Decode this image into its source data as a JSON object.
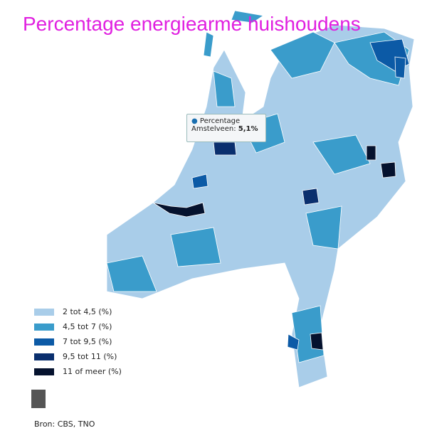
{
  "title": "Percentage energiearme huishoudens",
  "tooltip": {
    "series": "Percentage",
    "label": "Amstelveen:",
    "value": "5,1%"
  },
  "legend": [
    {
      "label": "2 tot 4,5 (%)",
      "color": "#a9cde9"
    },
    {
      "label": "4,5 tot 7 (%)",
      "color": "#3a9ccb"
    },
    {
      "label": "7 tot 9,5 (%)",
      "color": "#0c5aa6"
    },
    {
      "label": "9,5 tot 11 (%)",
      "color": "#0a2f6e"
    },
    {
      "label": "11 of meer (%)",
      "color": "#05122e"
    }
  ],
  "source": "Bron: CBS, TNO"
}
